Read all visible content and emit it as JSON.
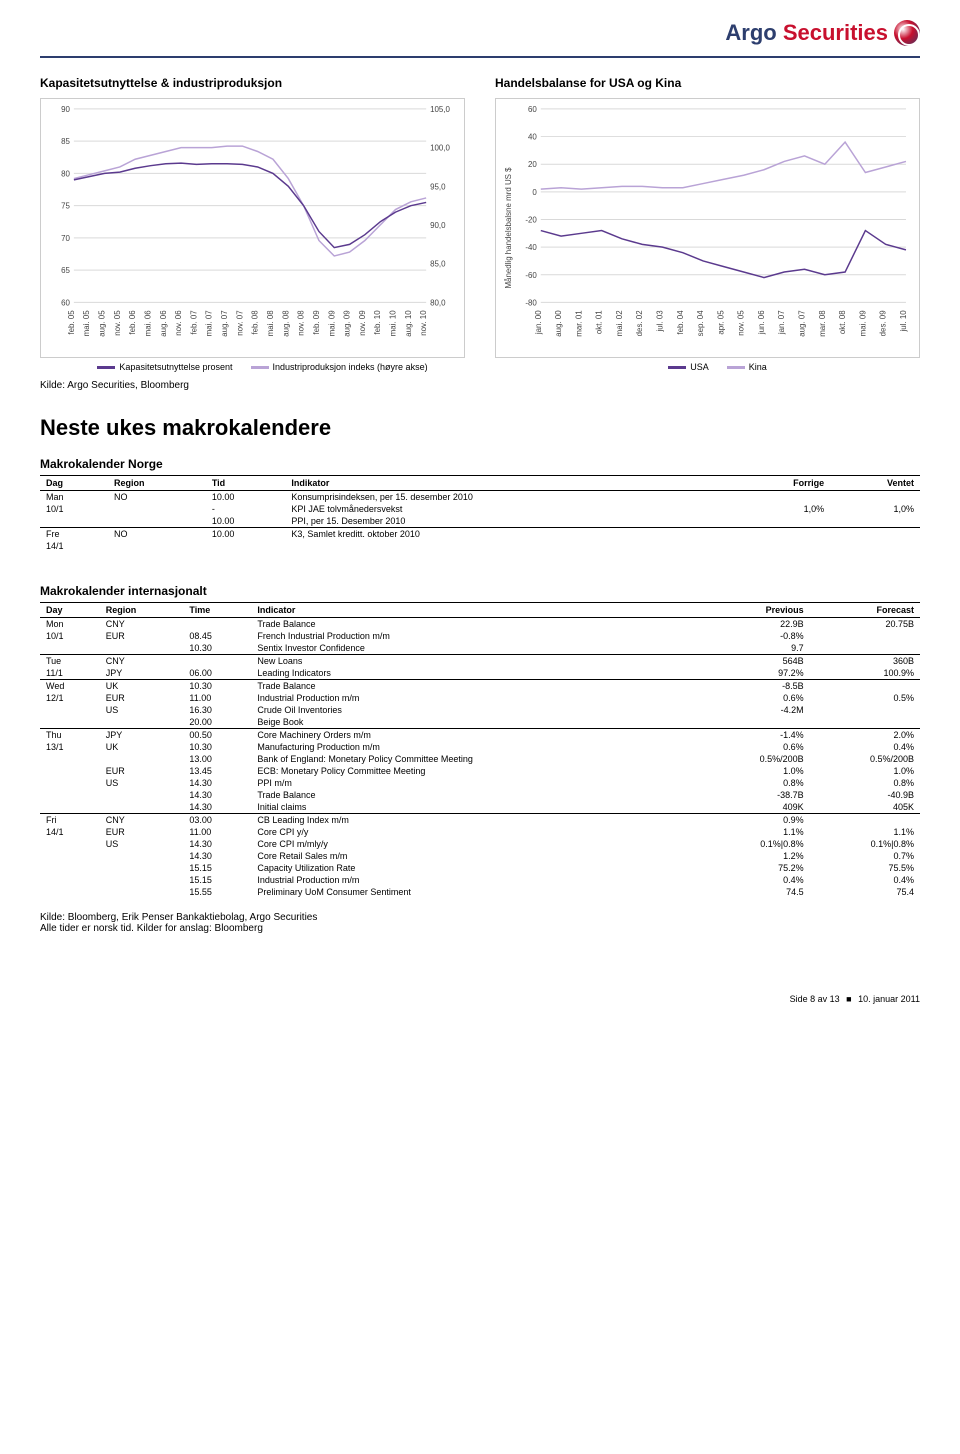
{
  "brand": {
    "part1": "Argo",
    "part2": " Securities"
  },
  "chart1": {
    "title": "Kapasitetsutnyttelse & industriproduksjon",
    "type": "line",
    "left_axis": {
      "min": 60,
      "max": 90,
      "step": 5
    },
    "right_axis": {
      "min": 80.0,
      "max": 105.0,
      "step": 5.0,
      "labels": [
        "80,0",
        "85,0",
        "90,0",
        "95,0",
        "100,0",
        "105,0"
      ]
    },
    "x_labels": [
      "feb. 05",
      "mai. 05",
      "aug. 05",
      "nov. 05",
      "feb. 06",
      "mai. 06",
      "aug. 06",
      "nov. 06",
      "feb. 07",
      "mai. 07",
      "aug. 07",
      "nov. 07",
      "feb. 08",
      "mai. 08",
      "aug. 08",
      "nov. 08",
      "feb. 09",
      "mai. 09",
      "aug. 09",
      "nov. 09",
      "feb. 10",
      "mai. 10",
      "aug. 10",
      "nov. 10"
    ],
    "series_a": {
      "label": "Kapasitetsutnyttelse prosent",
      "color": "#5b3a8e",
      "values": [
        79,
        79.5,
        80,
        80.2,
        80.8,
        81.2,
        81.5,
        81.6,
        81.4,
        81.5,
        81.5,
        81.4,
        81,
        80,
        78,
        75,
        71,
        68.5,
        69,
        70.5,
        72.5,
        74,
        75,
        75.5
      ]
    },
    "series_b": {
      "label": "Industriproduksjon indeks (høyre akse)",
      "color": "#b9a3d6",
      "values": [
        96,
        96.5,
        97,
        97.5,
        98.5,
        99,
        99.5,
        100,
        100,
        100,
        100.2,
        100.2,
        99.5,
        98.5,
        96,
        92.5,
        88,
        86,
        86.5,
        88,
        90,
        92,
        93,
        93.5
      ]
    }
  },
  "chart2": {
    "title": "Handelsbalanse for USA og Kina",
    "type": "line",
    "y_label": "Månedlig handelsbalsne mrd US $",
    "y_axis": {
      "min": -80,
      "max": 60,
      "step": 20
    },
    "x_labels": [
      "jan. 00",
      "aug. 00",
      "mar. 01",
      "okt. 01",
      "mai. 02",
      "des. 02",
      "jul. 03",
      "feb. 04",
      "sep. 04",
      "apr. 05",
      "nov. 05",
      "jun. 06",
      "jan. 07",
      "aug. 07",
      "mar. 08",
      "okt. 08",
      "mai. 09",
      "des. 09",
      "jul. 10"
    ],
    "series_a": {
      "label": "USA",
      "color": "#5b3a8e",
      "values": [
        -28,
        -32,
        -30,
        -28,
        -34,
        -38,
        -40,
        -44,
        -50,
        -54,
        -58,
        -62,
        -58,
        -56,
        -60,
        -58,
        -28,
        -38,
        -42
      ]
    },
    "series_b": {
      "label": "Kina",
      "color": "#b9a3d6",
      "values": [
        2,
        3,
        2,
        3,
        4,
        4,
        3,
        3,
        6,
        9,
        12,
        16,
        22,
        26,
        20,
        36,
        14,
        18,
        22
      ]
    }
  },
  "source_line": "Kilde: Argo Securities, Bloomberg",
  "heading_next": "Neste ukes makrokalendere",
  "norge": {
    "title": "Makrokalender Norge",
    "headers": [
      "Dag",
      "Region",
      "Tid",
      "Indikator",
      "Forrige",
      "Ventet"
    ],
    "rows": [
      {
        "sep": true,
        "c": [
          "Man",
          "NO",
          "10.00",
          "Konsumprisindeksen, per 15. desember 2010",
          "",
          ""
        ]
      },
      {
        "c": [
          "10/1",
          "",
          "-",
          "KPI JAE tolvmånedersvekst",
          "1,0%",
          "1,0%"
        ]
      },
      {
        "c": [
          "",
          "",
          "10.00",
          "PPI, per 15. Desember 2010",
          "",
          ""
        ]
      },
      {
        "sep": true,
        "c": [
          "Fre",
          "NO",
          "10.00",
          "K3, Samlet kreditt. oktober 2010",
          "",
          ""
        ]
      },
      {
        "c": [
          "14/1",
          "",
          "",
          "",
          "",
          ""
        ]
      }
    ]
  },
  "intl": {
    "title": "Makrokalender internasjonalt",
    "headers": [
      "Day",
      "Region",
      "Time",
      "Indicator",
      "Previous",
      "Forecast"
    ],
    "rows": [
      {
        "sep": true,
        "c": [
          "Mon",
          "CNY",
          "",
          "Trade Balance",
          "22.9B",
          "20.75B"
        ]
      },
      {
        "c": [
          "10/1",
          "EUR",
          "08.45",
          "French Industrial Production m/m",
          "-0.8%",
          ""
        ]
      },
      {
        "c": [
          "",
          "",
          "10.30",
          "Sentix Investor Confidence",
          "9.7",
          ""
        ]
      },
      {
        "sep": true,
        "c": [
          "Tue",
          "CNY",
          "",
          "New Loans",
          "564B",
          "360B"
        ]
      },
      {
        "c": [
          "11/1",
          "JPY",
          "06.00",
          "Leading Indicators",
          "97.2%",
          "100.9%"
        ]
      },
      {
        "sep": true,
        "c": [
          "Wed",
          "UK",
          "10.30",
          "Trade Balance",
          "-8.5B",
          ""
        ]
      },
      {
        "c": [
          "12/1",
          "EUR",
          "11.00",
          "Industrial Production m/m",
          "0.6%",
          "0.5%"
        ]
      },
      {
        "c": [
          "",
          "US",
          "16.30",
          "Crude Oil Inventories",
          "-4.2M",
          ""
        ]
      },
      {
        "c": [
          "",
          "",
          "20.00",
          "Beige Book",
          "",
          ""
        ]
      },
      {
        "sep": true,
        "c": [
          "Thu",
          "JPY",
          "00.50",
          "Core Machinery Orders m/m",
          "-1.4%",
          "2.0%"
        ]
      },
      {
        "c": [
          "13/1",
          "UK",
          "10.30",
          "Manufacturing Production m/m",
          "0.6%",
          "0.4%"
        ]
      },
      {
        "c": [
          "",
          "",
          "13.00",
          "Bank of England: Monetary Policy Committee Meeting",
          "0.5%/200B",
          "0.5%/200B"
        ]
      },
      {
        "c": [
          "",
          "EUR",
          "13.45",
          "ECB: Monetary Policy Committee Meeting",
          "1.0%",
          "1.0%"
        ]
      },
      {
        "c": [
          "",
          "US",
          "14.30",
          "PPI m/m",
          "0.8%",
          "0.8%"
        ]
      },
      {
        "c": [
          "",
          "",
          "14.30",
          "Trade Balance",
          "-38.7B",
          "-40.9B"
        ]
      },
      {
        "c": [
          "",
          "",
          "14.30",
          "Initial claims",
          "409K",
          "405K"
        ]
      },
      {
        "sep": true,
        "c": [
          "Fri",
          "CNY",
          "03.00",
          "CB Leading Index m/m",
          "0.9%",
          ""
        ]
      },
      {
        "c": [
          "14/1",
          "EUR",
          "11.00",
          "Core CPI y/y",
          "1.1%",
          "1.1%"
        ]
      },
      {
        "c": [
          "",
          "US",
          "14.30",
          "Core CPI m/mly/y",
          "0.1%|0.8%",
          "0.1%|0.8%"
        ]
      },
      {
        "c": [
          "",
          "",
          "14.30",
          "Core Retail Sales m/m",
          "1.2%",
          "0.7%"
        ]
      },
      {
        "c": [
          "",
          "",
          "15.15",
          "Capacity Utilization Rate",
          "75.2%",
          "75.5%"
        ]
      },
      {
        "c": [
          "",
          "",
          "15.15",
          "Industrial Production m/m",
          "0.4%",
          "0.4%"
        ]
      },
      {
        "c": [
          "",
          "",
          "15.55",
          "Preliminary UoM Consumer Sentiment",
          "74.5",
          "75.4"
        ]
      }
    ]
  },
  "footer_source": "Kilde: Bloomberg, Erik Penser Bankaktiebolag, Argo Securities",
  "footer_note": "Alle tider er norsk tid. Kilder for anslag: Bloomberg",
  "page_footer": {
    "side": "Side 8 av 13",
    "date": "10. januar 2011"
  }
}
